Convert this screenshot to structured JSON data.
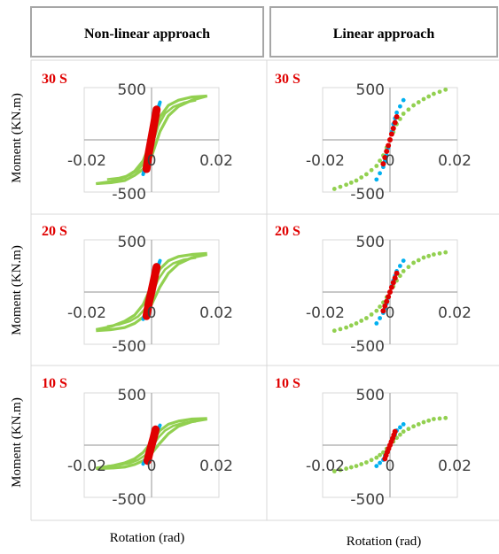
{
  "headers": {
    "nonlinear": "Non-linear approach",
    "linear": "Linear approach"
  },
  "row_labels": [
    "30 S",
    "20 S",
    "10 S"
  ],
  "ylabel": "Moment (KN.m)",
  "xlabels": [
    "Rotation (rad)",
    "Rotation (rad)"
  ],
  "colors": {
    "green": "#92d050",
    "blue": "#00b0f0",
    "red": "#e00000",
    "label_red": "#e00000",
    "axis": "#a6a6a6",
    "grid": "#d9d9d9",
    "header_border": "#a6a6a6"
  },
  "chart_data": [
    {
      "type": "scatter",
      "id": "nonlinear-30s",
      "approach": "Non-linear approach",
      "duration_label": "30 S",
      "xlim": [
        -0.02,
        0.02
      ],
      "ylim": [
        -500,
        500
      ],
      "xticks": [
        "-0.02",
        "0",
        "0.02"
      ],
      "yticks": [
        "500",
        "-500"
      ],
      "series": [
        {
          "color": "green",
          "style": "loop",
          "x": [
            -0.0165,
            -0.012,
            -0.008,
            -0.005,
            -0.0025,
            0,
            0.0025,
            0.005,
            0.008,
            0.012,
            0.0165
          ],
          "y_upper": [
            -420,
            -400,
            -360,
            -300,
            -200,
            0,
            220,
            330,
            380,
            410,
            420
          ],
          "y_lower": [
            -420,
            -410,
            -390,
            -340,
            -280,
            -160,
            80,
            230,
            320,
            380,
            420
          ]
        },
        {
          "color": "blue",
          "style": "line",
          "x": [
            -0.0025,
            -0.001,
            0,
            0.001,
            0.0025
          ],
          "y": [
            -330,
            -150,
            0,
            200,
            360
          ]
        },
        {
          "color": "red",
          "style": "blob",
          "x": [
            -0.0015,
            -0.0008,
            0,
            0.0008,
            0.0015
          ],
          "y": [
            -280,
            -120,
            20,
            160,
            290
          ]
        }
      ]
    },
    {
      "type": "scatter",
      "id": "linear-30s",
      "approach": "Linear approach",
      "duration_label": "30 S",
      "xlim": [
        -0.02,
        0.02
      ],
      "ylim": [
        -500,
        500
      ],
      "xticks": [
        "-0.02",
        "0",
        "0.02"
      ],
      "yticks": [
        "500",
        "-500"
      ],
      "series": [
        {
          "color": "green",
          "style": "dots",
          "x": [
            -0.0165,
            -0.013,
            -0.01,
            -0.007,
            -0.004,
            -0.002,
            0,
            0.002,
            0.004,
            0.007,
            0.01,
            0.013,
            0.0165
          ],
          "y": [
            -470,
            -430,
            -390,
            -330,
            -250,
            -150,
            0,
            150,
            250,
            330,
            390,
            440,
            480
          ]
        },
        {
          "color": "blue",
          "style": "dots",
          "x": [
            -0.004,
            -0.002,
            -0.001,
            0,
            0.001,
            0.002,
            0.004
          ],
          "y": [
            -380,
            -260,
            -150,
            0,
            150,
            260,
            380
          ]
        },
        {
          "color": "red",
          "style": "dots",
          "x": [
            -0.002,
            -0.001,
            0,
            0.001,
            0.002
          ],
          "y": [
            -230,
            -110,
            0,
            110,
            220
          ]
        }
      ]
    },
    {
      "type": "scatter",
      "id": "nonlinear-20s",
      "approach": "Non-linear approach",
      "duration_label": "20 S",
      "xlim": [
        -0.02,
        0.02
      ],
      "ylim": [
        -500,
        500
      ],
      "xticks": [
        "-0.02",
        "0",
        "0.02"
      ],
      "yticks": [
        "500",
        "-500"
      ],
      "series": [
        {
          "color": "green",
          "style": "loop",
          "x": [
            -0.0165,
            -0.012,
            -0.008,
            -0.005,
            -0.0025,
            0,
            0.0025,
            0.005,
            0.008,
            0.012,
            0.0165
          ],
          "y_upper": [
            -360,
            -330,
            -280,
            -220,
            -120,
            60,
            220,
            300,
            340,
            360,
            370
          ],
          "y_lower": [
            -370,
            -360,
            -340,
            -300,
            -240,
            -120,
            50,
            180,
            270,
            330,
            360
          ]
        },
        {
          "color": "blue",
          "style": "line",
          "x": [
            -0.0025,
            -0.001,
            0,
            0.001,
            0.0025
          ],
          "y": [
            -260,
            -120,
            0,
            160,
            300
          ]
        },
        {
          "color": "red",
          "style": "blob",
          "x": [
            -0.0015,
            -0.0008,
            0,
            0.0008,
            0.0015
          ],
          "y": [
            -230,
            -100,
            10,
            130,
            240
          ]
        }
      ]
    },
    {
      "type": "scatter",
      "id": "linear-20s",
      "approach": "Linear approach",
      "duration_label": "20 S",
      "xlim": [
        -0.02,
        0.02
      ],
      "ylim": [
        -500,
        500
      ],
      "xticks": [
        "-0.02",
        "0",
        "0.02"
      ],
      "yticks": [
        "500",
        "-500"
      ],
      "series": [
        {
          "color": "green",
          "style": "dots",
          "x": [
            -0.0165,
            -0.013,
            -0.01,
            -0.007,
            -0.004,
            -0.002,
            0,
            0.002,
            0.004,
            0.007,
            0.01,
            0.013,
            0.0165
          ],
          "y": [
            -370,
            -340,
            -300,
            -250,
            -180,
            -100,
            0,
            110,
            200,
            280,
            330,
            360,
            380
          ]
        },
        {
          "color": "blue",
          "style": "dots",
          "x": [
            -0.004,
            -0.002,
            -0.001,
            0,
            0.001,
            0.002,
            0.004
          ],
          "y": [
            -300,
            -200,
            -110,
            0,
            110,
            200,
            300
          ]
        },
        {
          "color": "red",
          "style": "dots",
          "x": [
            -0.002,
            -0.001,
            0,
            0.001,
            0.002
          ],
          "y": [
            -180,
            -90,
            0,
            90,
            180
          ]
        }
      ]
    },
    {
      "type": "scatter",
      "id": "nonlinear-10s",
      "approach": "Non-linear approach",
      "duration_label": "10 S",
      "xlim": [
        -0.02,
        0.02
      ],
      "ylim": [
        -500,
        500
      ],
      "xticks": [
        "-0.02",
        "0",
        "0.02"
      ],
      "yticks": [
        "500",
        "-500"
      ],
      "series": [
        {
          "color": "green",
          "style": "loop",
          "x": [
            -0.0165,
            -0.012,
            -0.008,
            -0.005,
            -0.0025,
            0,
            0.0025,
            0.005,
            0.008,
            0.012,
            0.0165
          ],
          "y_upper": [
            -220,
            -200,
            -170,
            -130,
            -70,
            30,
            140,
            200,
            230,
            250,
            255
          ],
          "y_lower": [
            -225,
            -220,
            -210,
            -185,
            -150,
            -80,
            20,
            110,
            180,
            225,
            250
          ]
        },
        {
          "color": "blue",
          "style": "line",
          "x": [
            -0.0025,
            -0.001,
            0,
            0.001,
            0.0025
          ],
          "y": [
            -180,
            -90,
            0,
            90,
            190
          ]
        },
        {
          "color": "red",
          "style": "blob",
          "x": [
            -0.0012,
            -0.0006,
            0,
            0.0006,
            0.0012
          ],
          "y": [
            -150,
            -70,
            0,
            70,
            150
          ]
        }
      ]
    },
    {
      "type": "scatter",
      "id": "linear-10s",
      "approach": "Linear approach",
      "duration_label": "10 S",
      "xlim": [
        -0.02,
        0.02
      ],
      "ylim": [
        -500,
        500
      ],
      "xticks": [
        "-0.02",
        "0",
        "0.02"
      ],
      "yticks": [
        "500",
        "-500"
      ],
      "series": [
        {
          "color": "green",
          "style": "dots",
          "x": [
            -0.0165,
            -0.013,
            -0.01,
            -0.007,
            -0.004,
            -0.002,
            0,
            0.002,
            0.004,
            0.007,
            0.01,
            0.013,
            0.0165
          ],
          "y": [
            -250,
            -225,
            -200,
            -165,
            -120,
            -70,
            0,
            70,
            130,
            180,
            220,
            250,
            260
          ]
        },
        {
          "color": "blue",
          "style": "dots",
          "x": [
            -0.004,
            -0.002,
            -0.001,
            0,
            0.001,
            0.002,
            0.004
          ],
          "y": [
            -200,
            -140,
            -70,
            0,
            70,
            140,
            200
          ]
        },
        {
          "color": "red",
          "style": "dots",
          "x": [
            -0.0015,
            -0.0008,
            0,
            0.0008,
            0.0015
          ],
          "y": [
            -130,
            -65,
            0,
            65,
            130
          ]
        }
      ]
    }
  ]
}
